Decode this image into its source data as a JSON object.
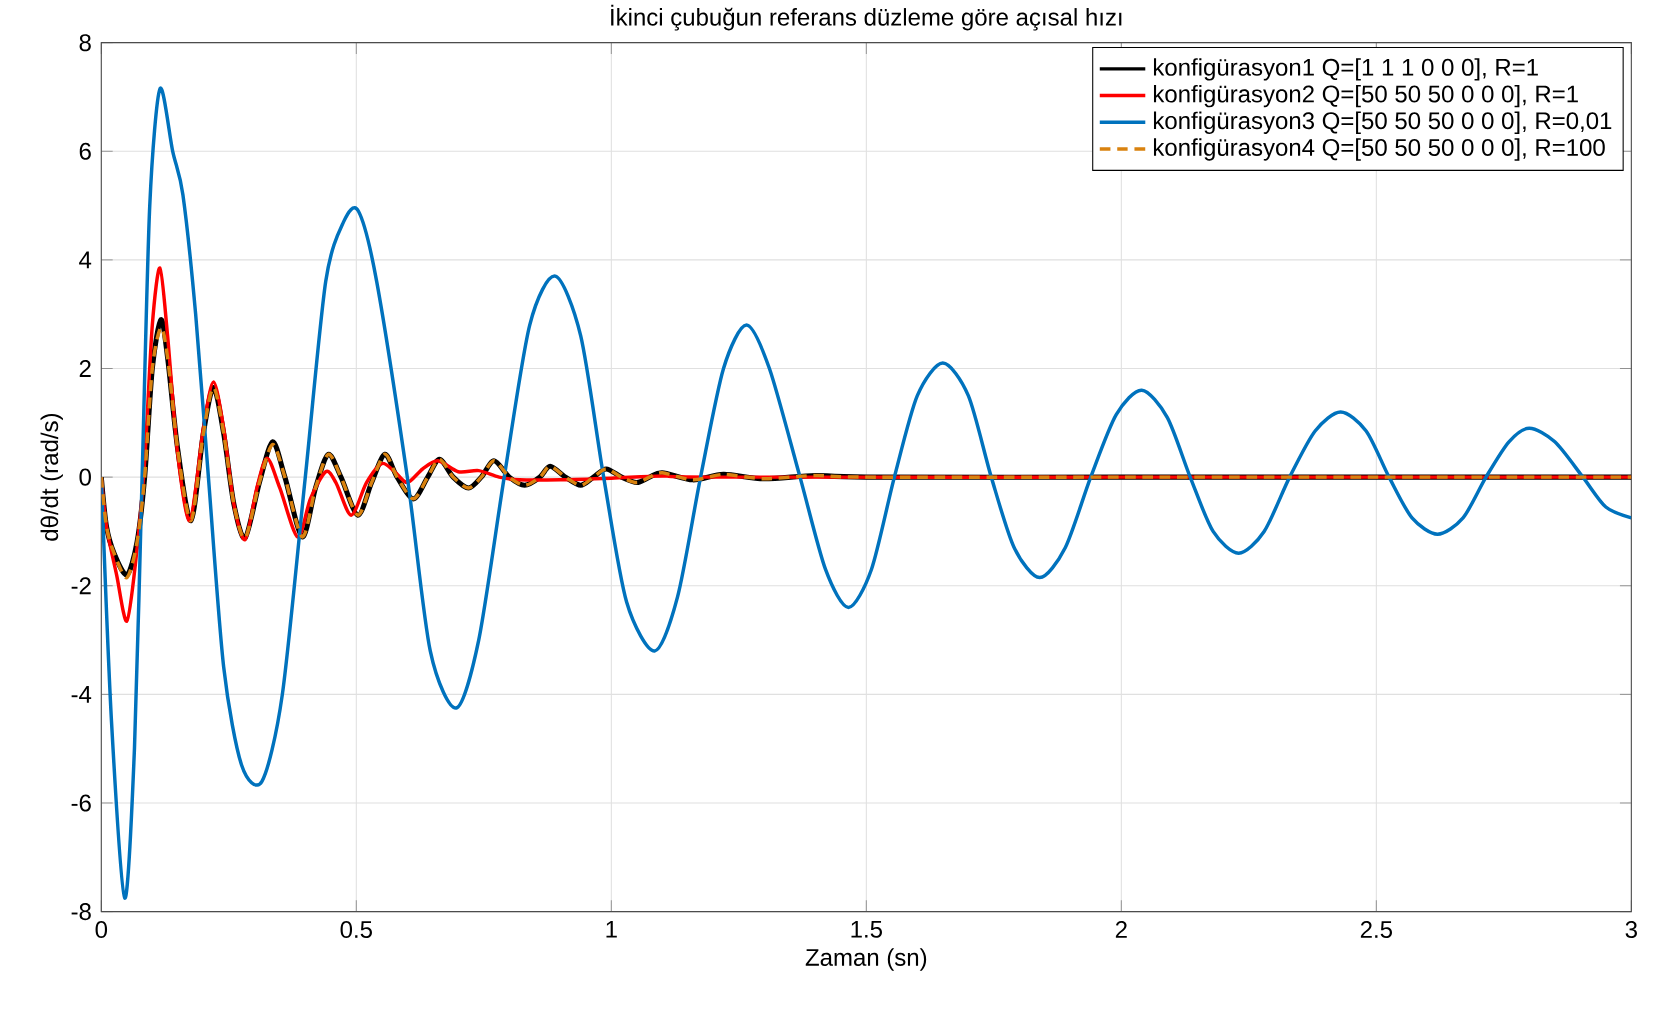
{
  "chart_data": {
    "type": "line",
    "title": "İkinci çubuğun referans düzleme göre açısal hızı",
    "xlabel": "Zaman (sn)",
    "ylabel": "dθ/dt (rad/s)",
    "xlim": [
      0,
      3
    ],
    "ylim": [
      -8,
      8
    ],
    "xticks": [
      0,
      0.5,
      1,
      1.5,
      2,
      2.5,
      3
    ],
    "yticks": [
      -8,
      -6,
      -4,
      -2,
      0,
      2,
      4,
      6,
      8
    ],
    "grid": true,
    "legend": "top right",
    "marker": "none",
    "series": [
      {
        "name": "konfigürasyon1 Q=[1 1 1 0 0 0], R=1",
        "color": "#000000",
        "line_style": "solid",
        "x": [
          0,
          0.01,
          0.025,
          0.05,
          0.07,
          0.085,
          0.1,
          0.117,
          0.13,
          0.15,
          0.176,
          0.2,
          0.22,
          0.24,
          0.26,
          0.282,
          0.31,
          0.336,
          0.36,
          0.394,
          0.42,
          0.445,
          0.47,
          0.503,
          0.53,
          0.556,
          0.58,
          0.612,
          0.64,
          0.663,
          0.69,
          0.72,
          0.745,
          0.77,
          0.8,
          0.83,
          0.86,
          0.88,
          0.91,
          0.94,
          0.965,
          0.99,
          1.02,
          1.05,
          1.075,
          1.1,
          1.16,
          1.22,
          1.3,
          1.4,
          1.5,
          2,
          2.5,
          3
        ],
        "values": [
          0,
          -0.9,
          -1.4,
          -1.8,
          -1.2,
          0,
          2,
          2.9,
          2.2,
          0.5,
          -0.8,
          0.8,
          1.65,
          0.8,
          -0.5,
          -1.12,
          -0.1,
          0.65,
          0,
          -1.1,
          -0.2,
          0.42,
          0,
          -0.7,
          -0.1,
          0.42,
          0,
          -0.4,
          0,
          0.33,
          0,
          -0.2,
          0,
          0.3,
          0,
          -0.15,
          0,
          0.2,
          0,
          -0.15,
          0,
          0.15,
          0,
          -0.1,
          0,
          0.08,
          -0.05,
          0.05,
          -0.03,
          0.03,
          0,
          0,
          0,
          0
        ]
      },
      {
        "name": "konfigürasyon2 Q=[50 50 50 0 0 0], R=1",
        "color": "#ff0000",
        "line_style": "solid",
        "x": [
          0,
          0.01,
          0.03,
          0.05,
          0.068,
          0.085,
          0.1,
          0.115,
          0.13,
          0.15,
          0.174,
          0.2,
          0.22,
          0.24,
          0.26,
          0.282,
          0.305,
          0.325,
          0.35,
          0.385,
          0.41,
          0.44,
          0.46,
          0.49,
          0.52,
          0.55,
          0.575,
          0.6,
          0.63,
          0.66,
          0.7,
          0.74,
          0.78,
          0.82,
          0.9,
          1,
          1.1,
          1.2,
          2,
          3
        ],
        "values": [
          0,
          -0.9,
          -1.8,
          -2.65,
          -1.5,
          0.3,
          2.8,
          3.85,
          2.6,
          0.4,
          -0.8,
          0.9,
          1.75,
          0.9,
          -0.5,
          -1.15,
          -0.2,
          0.35,
          -0.2,
          -1.1,
          -0.4,
          0.1,
          -0.1,
          -0.7,
          -0.1,
          0.25,
          0.1,
          -0.1,
          0.15,
          0.3,
          0.1,
          0.12,
          0,
          -0.05,
          -0.05,
          -0.02,
          0.02,
          0,
          0,
          0
        ]
      },
      {
        "name": "konfigürasyon3 Q=[50 50 50 0 0 0], R=0,01",
        "color": "#0072bd",
        "line_style": "solid",
        "x": [
          0,
          0.02,
          0.046,
          0.065,
          0.08,
          0.095,
          0.115,
          0.14,
          0.16,
          0.185,
          0.21,
          0.24,
          0.275,
          0.315,
          0.355,
          0.4,
          0.44,
          0.475,
          0.504,
          0.54,
          0.6,
          0.645,
          0.696,
          0.74,
          0.79,
          0.84,
          0.89,
          0.94,
          0.985,
          1.03,
          1.085,
          1.13,
          1.175,
          1.22,
          1.265,
          1.31,
          1.37,
          1.42,
          1.465,
          1.51,
          1.555,
          1.6,
          1.65,
          1.7,
          1.745,
          1.79,
          1.84,
          1.89,
          1.94,
          1.99,
          2.04,
          2.09,
          2.135,
          2.18,
          2.23,
          2.28,
          2.33,
          2.38,
          2.43,
          2.48,
          2.525,
          2.57,
          2.62,
          2.67,
          2.715,
          2.76,
          2.8,
          2.85,
          2.905,
          2.95,
          3
        ],
        "values": [
          0,
          -4.5,
          -7.75,
          -5,
          0,
          5,
          7.15,
          6,
          5.2,
          3,
          0,
          -3.5,
          -5.3,
          -5.6,
          -4,
          0,
          3.6,
          4.7,
          4.9,
          3.6,
          0,
          -3.2,
          -4.25,
          -3,
          0,
          2.8,
          3.7,
          2.6,
          0,
          -2.3,
          -3.2,
          -2.2,
          0,
          2,
          2.8,
          2,
          0,
          -1.7,
          -2.4,
          -1.7,
          0,
          1.5,
          2.1,
          1.5,
          0,
          -1.3,
          -1.85,
          -1.3,
          0,
          1.15,
          1.6,
          1.1,
          0,
          -1,
          -1.4,
          -1,
          0,
          0.85,
          1.2,
          0.85,
          0,
          -0.75,
          -1.05,
          -0.75,
          0,
          0.65,
          0.9,
          0.65,
          0,
          -0.55,
          -0.75
        ]
      },
      {
        "name": "konfigürasyon4 Q=[50 50 50 0 0 0], R=100",
        "color": "#d9820f",
        "line_style": "dashed",
        "x": [
          0,
          0.01,
          0.025,
          0.05,
          0.07,
          0.085,
          0.1,
          0.117,
          0.13,
          0.15,
          0.176,
          0.2,
          0.22,
          0.24,
          0.26,
          0.282,
          0.31,
          0.336,
          0.36,
          0.394,
          0.42,
          0.445,
          0.47,
          0.503,
          0.53,
          0.556,
          0.58,
          0.612,
          0.64,
          0.663,
          0.69,
          0.72,
          0.745,
          0.77,
          0.8,
          0.83,
          0.86,
          0.88,
          0.91,
          0.94,
          0.965,
          0.99,
          1.02,
          1.05,
          1.075,
          1.1,
          1.16,
          1.22,
          1.3,
          1.4,
          1.5,
          2,
          2.5,
          3
        ],
        "values": [
          0,
          -0.9,
          -1.4,
          -1.85,
          -1.2,
          0,
          2,
          2.75,
          2.2,
          0.5,
          -0.8,
          0.8,
          1.65,
          0.8,
          -0.5,
          -1.12,
          -0.1,
          0.6,
          0,
          -1.1,
          -0.2,
          0.42,
          0,
          -0.7,
          -0.1,
          0.42,
          0,
          -0.4,
          0,
          0.33,
          0,
          -0.2,
          0,
          0.3,
          0,
          -0.15,
          0,
          0.2,
          0,
          -0.15,
          0,
          0.15,
          0,
          -0.1,
          0,
          0.08,
          -0.05,
          0.05,
          -0.03,
          0.03,
          0,
          0,
          0,
          0
        ]
      }
    ]
  }
}
